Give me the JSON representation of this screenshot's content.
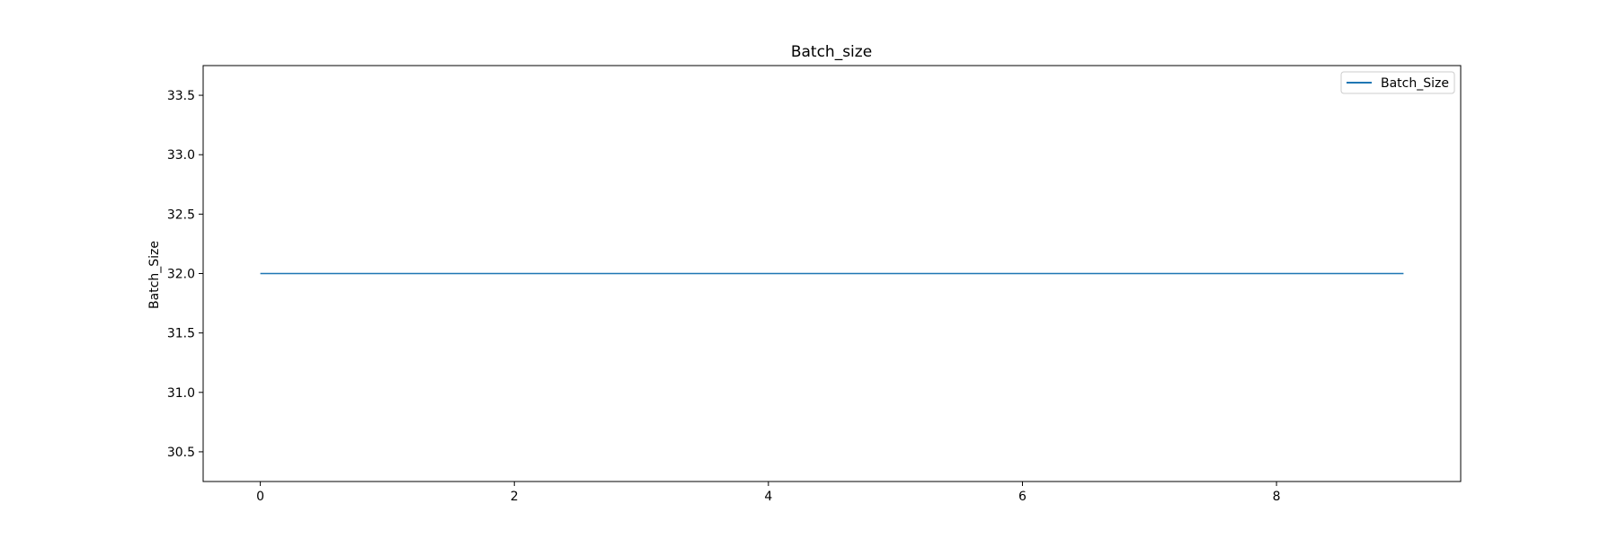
{
  "chart_data": {
    "type": "line",
    "title": "Batch_size",
    "xlabel": "",
    "ylabel": "Batch_Size",
    "xlim": [
      -0.45,
      9.45
    ],
    "ylim": [
      30.25,
      33.75
    ],
    "x_ticks": [
      0,
      2,
      4,
      6,
      8
    ],
    "y_ticks": [
      30.5,
      31.0,
      31.5,
      32.0,
      32.5,
      33.0,
      33.5
    ],
    "y_tick_labels": [
      "30.5",
      "31.0",
      "31.5",
      "32.0",
      "32.5",
      "33.0",
      "33.5"
    ],
    "grid": false,
    "legend_position": "top-right",
    "series": [
      {
        "name": "Batch_Size",
        "color": "#1f77b4",
        "x": [
          0,
          1,
          2,
          3,
          4,
          5,
          6,
          7,
          8,
          9
        ],
        "y": [
          32,
          32,
          32,
          32,
          32,
          32,
          32,
          32,
          32,
          32
        ]
      }
    ]
  }
}
